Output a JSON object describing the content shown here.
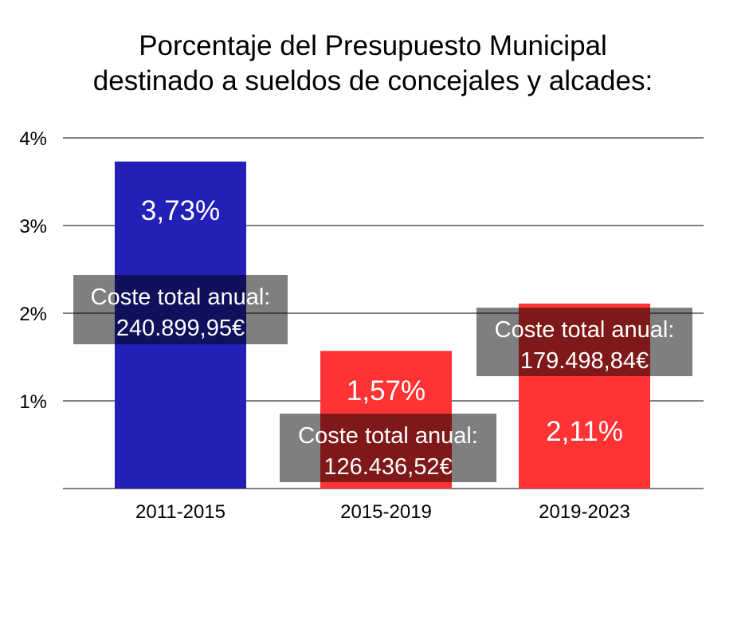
{
  "chart_data": {
    "type": "bar",
    "title": [
      "Porcentaje del Presupuesto Municipal",
      "destinado a sueldos de concejales y alcades:"
    ],
    "xlabel": "",
    "ylabel": "",
    "ylim": [
      0,
      4
    ],
    "yticks": [
      {
        "value": 1,
        "label": "1%"
      },
      {
        "value": 2,
        "label": "2%"
      },
      {
        "value": 3,
        "label": "3%"
      },
      {
        "value": 4,
        "label": "4%"
      }
    ],
    "grid": true,
    "legend": "none",
    "categories": [
      "2011-2015",
      "2015-2019",
      "2019-2023"
    ],
    "values": [
      3.73,
      1.57,
      2.11
    ],
    "value_labels": [
      "3,73%",
      "1,57%",
      "2,11%"
    ],
    "bar_colors": [
      "#2320b8",
      "#ff3333",
      "#ff3333"
    ],
    "annotations": [
      {
        "category": "2011-2015",
        "line1": "Coste total anual:",
        "line2": "240.899,95€",
        "anchor_value": 2.0
      },
      {
        "category": "2015-2019",
        "line1": "Coste total anual:",
        "line2": "126.436,52€",
        "anchor_value": 0.45
      },
      {
        "category": "2019-2023",
        "line1": "Coste total anual:",
        "line2": "179.498,84€",
        "anchor_value": 1.62
      }
    ],
    "annotation_box_color": "rgba(0,0,0,0.5)",
    "grid_color": "#808080"
  }
}
